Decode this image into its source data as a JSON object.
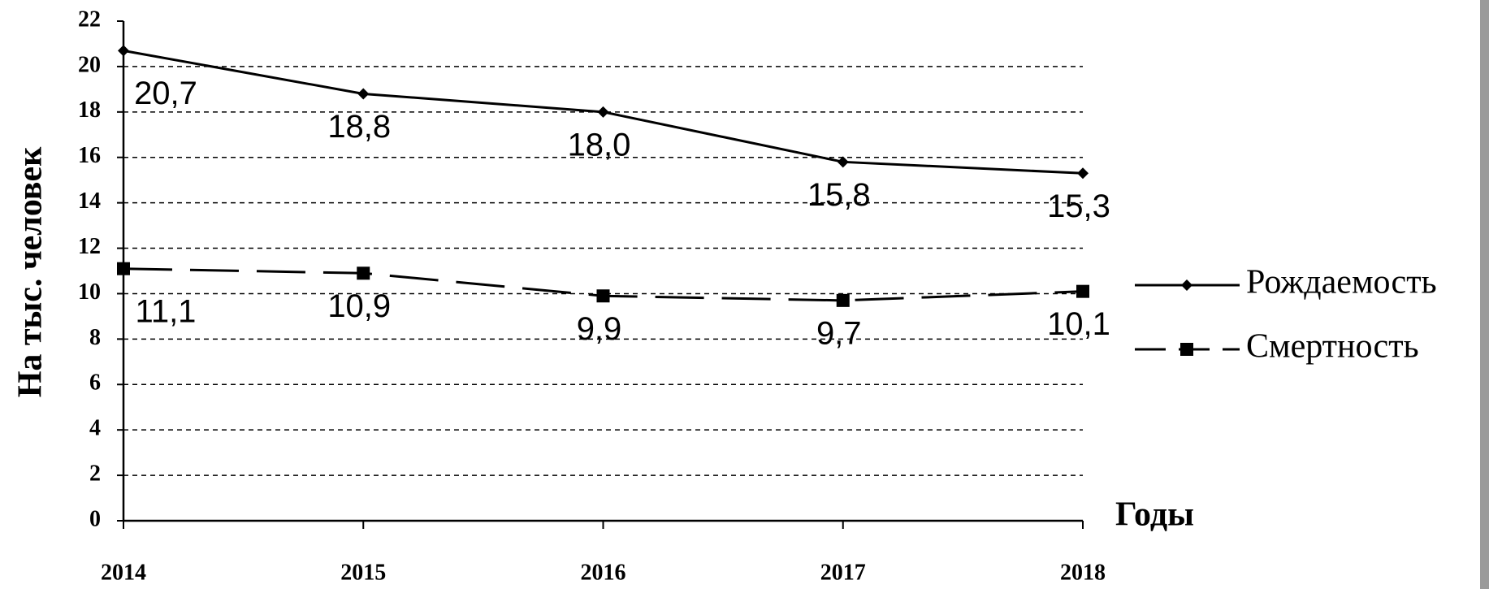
{
  "chart_data": {
    "type": "line",
    "ylabel": "На тыс. человек",
    "xlabel": "Годы",
    "x": [
      2014,
      2015,
      2016,
      2017,
      2018
    ],
    "xlim": [
      2014,
      2018
    ],
    "xticks": [
      2014,
      2015,
      2016,
      2017,
      2018
    ],
    "ylim": [
      0,
      22
    ],
    "yticks": [
      0,
      2,
      4,
      6,
      8,
      10,
      12,
      14,
      16,
      18,
      20,
      22
    ],
    "grid": true,
    "legend": "right",
    "series": [
      {
        "name": "Рождаемость",
        "color": "#000000",
        "style": "solid",
        "marker": "diamond",
        "values": [
          20.7,
          18.8,
          18.0,
          15.8,
          15.3
        ],
        "value_labels": [
          "20,7",
          "18,8",
          "18,0",
          "15,8",
          "15,3"
        ]
      },
      {
        "name": "Смертность",
        "color": "#000000",
        "style": "dashed",
        "marker": "square",
        "values": [
          11.1,
          10.9,
          9.9,
          9.7,
          10.1
        ],
        "value_labels": [
          "11,1",
          "10,9",
          "9,9",
          "9,7",
          "10,1"
        ]
      }
    ]
  }
}
